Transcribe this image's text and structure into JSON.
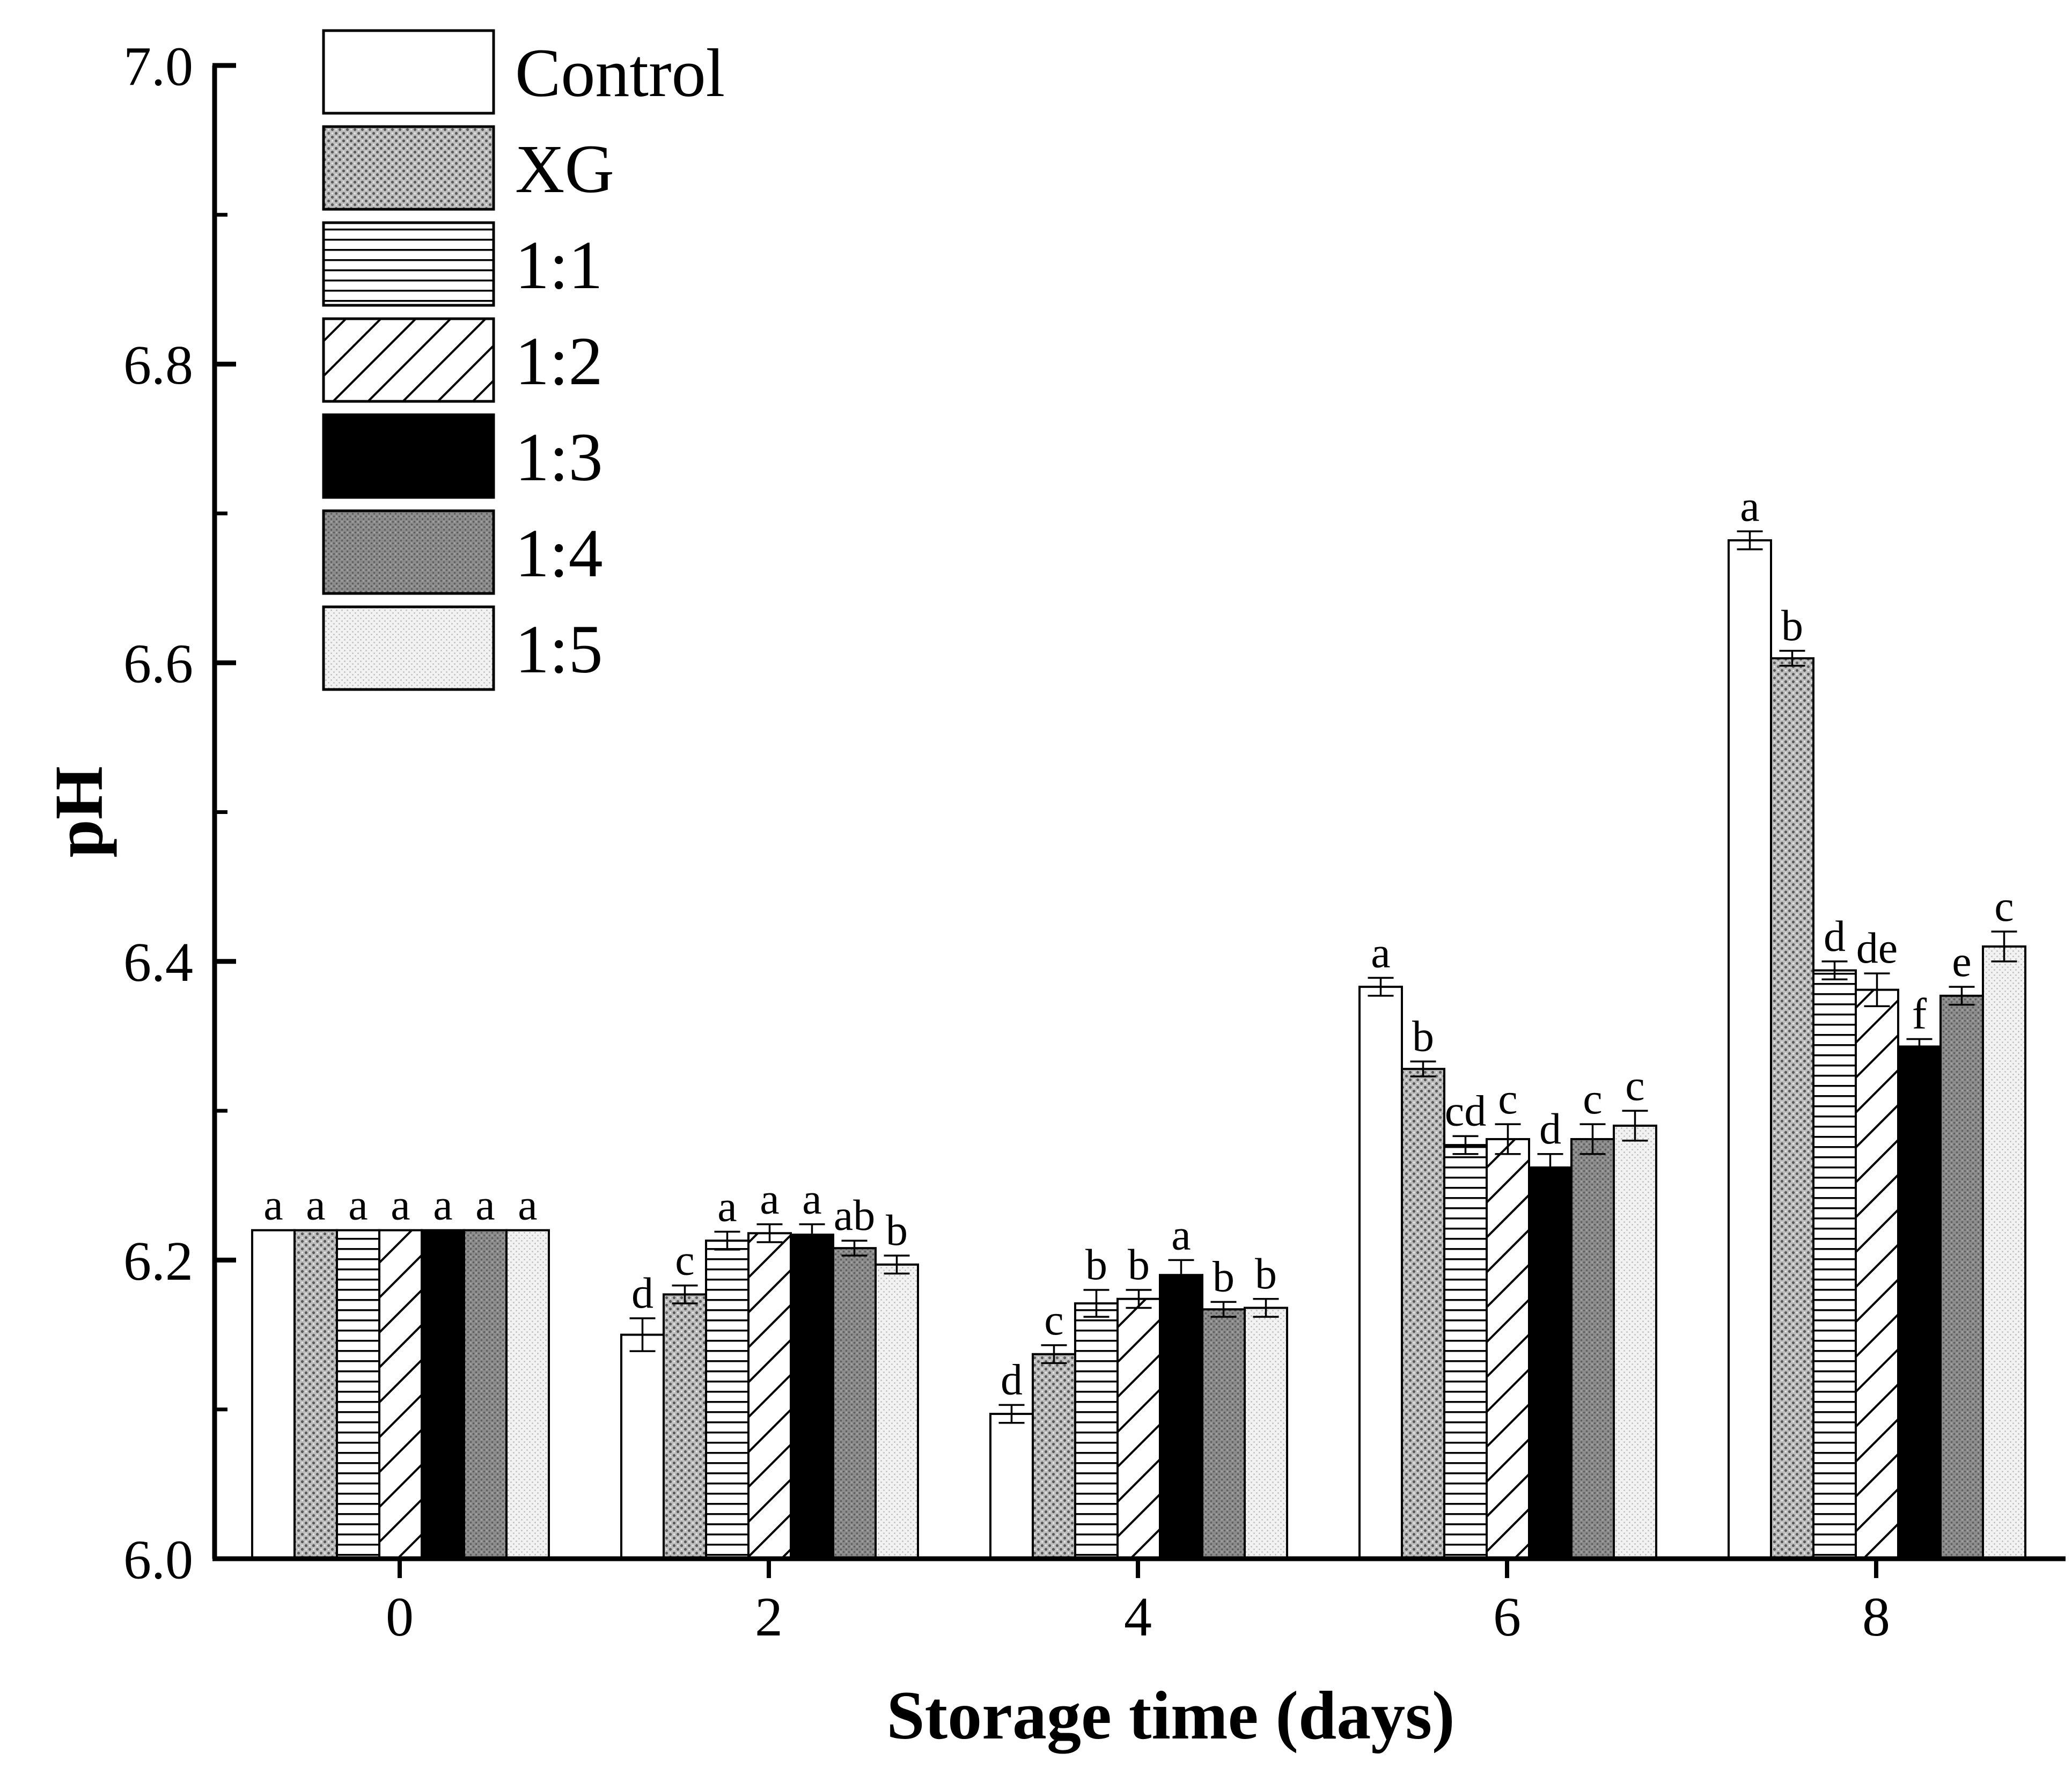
{
  "chart_data": {
    "type": "bar",
    "title": "",
    "xlabel": "Storage time (days)",
    "ylabel": "pH",
    "ylim": [
      6.0,
      7.0
    ],
    "yticks": [
      "6.0",
      "6.2",
      "6.4",
      "6.6",
      "6.8",
      "7.0"
    ],
    "categories": [
      "0",
      "2",
      "4",
      "6",
      "8"
    ],
    "legend_position": "top-left",
    "grid": false,
    "series": [
      {
        "name": "Control",
        "pattern": "white",
        "values": [
          6.22,
          6.15,
          6.097,
          6.383,
          6.682
        ],
        "errors": [
          0,
          0.011,
          0.006,
          0.006,
          0.006
        ],
        "letters": [
          "a",
          "d",
          "d",
          "a",
          "a"
        ]
      },
      {
        "name": "XG",
        "pattern": "dots",
        "values": [
          6.22,
          6.177,
          6.137,
          6.328,
          6.603
        ],
        "errors": [
          0,
          0.006,
          0.006,
          0.005,
          0.005
        ],
        "letters": [
          "a",
          "c",
          "c",
          "b",
          "b"
        ]
      },
      {
        "name": "1:1",
        "pattern": "hlines",
        "values": [
          6.22,
          6.213,
          6.171,
          6.277,
          6.394
        ],
        "errors": [
          0,
          0.006,
          0.009,
          0.006,
          0.006
        ],
        "letters": [
          "a",
          "a",
          "b",
          "cd",
          "d"
        ]
      },
      {
        "name": "1:2",
        "pattern": "diag",
        "values": [
          6.22,
          6.218,
          6.174,
          6.281,
          6.381
        ],
        "errors": [
          0,
          0.006,
          0.006,
          0.01,
          0.011
        ],
        "letters": [
          "a",
          "a",
          "b",
          "c",
          "de"
        ]
      },
      {
        "name": "1:3",
        "pattern": "black",
        "values": [
          6.22,
          6.217,
          6.19,
          6.262,
          6.343
        ],
        "errors": [
          0,
          0.007,
          0.01,
          0.009,
          0.005
        ],
        "letters": [
          "a",
          "a",
          "a",
          "d",
          "f"
        ]
      },
      {
        "name": "1:4",
        "pattern": "gray",
        "values": [
          6.22,
          6.208,
          6.167,
          6.281,
          6.377
        ],
        "errors": [
          0,
          0.005,
          0.005,
          0.01,
          0.006
        ],
        "letters": [
          "a",
          "ab",
          "b",
          "c",
          "e"
        ]
      },
      {
        "name": "1:5",
        "pattern": "lightdots",
        "values": [
          6.22,
          6.197,
          6.168,
          6.29,
          6.41
        ],
        "errors": [
          0,
          0.006,
          0.006,
          0.01,
          0.01
        ],
        "letters": [
          "a",
          "b",
          "b",
          "c",
          "c"
        ]
      }
    ]
  }
}
